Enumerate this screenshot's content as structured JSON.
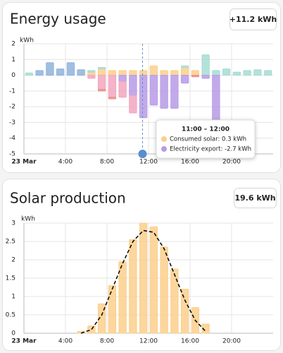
{
  "chart_data": [
    {
      "type": "bar",
      "title": "Energy usage",
      "badge": "+11.2 kWh",
      "y_label": "kWh",
      "categories": [
        "23 Mar",
        null,
        null,
        null,
        "4:00",
        null,
        null,
        null,
        "8:00",
        null,
        null,
        null,
        "12:00",
        null,
        null,
        null,
        "16:00",
        null,
        null,
        null,
        "20:00",
        null,
        null,
        null
      ],
      "ylim": [
        -5,
        2
      ],
      "yticks": [
        -5,
        -4,
        -3,
        -2,
        -1,
        0,
        1,
        2
      ],
      "grid": true,
      "series": [
        {
          "color": "#8fb3dd",
          "values": [
            null,
            0.3,
            0.8,
            0.4,
            0.8,
            0.35,
            null,
            null,
            null,
            null,
            null,
            null,
            null,
            null,
            null,
            null,
            null,
            null,
            null,
            null,
            null,
            null,
            null,
            null
          ]
        },
        {
          "color": "#fbcf8c",
          "values": [
            null,
            null,
            null,
            null,
            null,
            null,
            0.2,
            0.4,
            0.3,
            0.3,
            0.3,
            0.3,
            0.6,
            0.3,
            0.3,
            0.5,
            0.3,
            null,
            null,
            null,
            null,
            null,
            null,
            null
          ]
        },
        {
          "color": "#a7dcd3",
          "values": [
            0.15,
            null,
            null,
            null,
            null,
            null,
            0.1,
            0.1,
            null,
            null,
            null,
            null,
            null,
            null,
            null,
            0.1,
            null,
            1.3,
            0.3,
            0.4,
            0.2,
            0.3,
            0.35,
            0.3
          ]
        },
        {
          "color": "#b79be6",
          "values": [
            null,
            null,
            null,
            null,
            null,
            null,
            null,
            null,
            null,
            -0.4,
            -1.3,
            -2.7,
            -1.9,
            -2.1,
            -2.1,
            -0.5,
            null,
            -0.2,
            -2.9,
            null,
            null,
            null,
            null,
            null
          ]
        },
        {
          "color": "#f2a6bf",
          "values": [
            null,
            null,
            null,
            null,
            null,
            null,
            -0.2,
            -0.9,
            -1.4,
            -1.0,
            -1.1,
            null,
            null,
            null,
            null,
            null,
            null,
            null,
            null,
            null,
            null,
            null,
            null,
            null
          ]
        },
        {
          "color": "#ef8a8a",
          "values": [
            null,
            null,
            null,
            null,
            null,
            null,
            null,
            -0.1,
            -0.1,
            null,
            null,
            null,
            null,
            null,
            null,
            null,
            -0.1,
            null,
            null,
            null,
            null,
            null,
            null,
            null
          ]
        }
      ],
      "tooltip": {
        "title": "11:00 – 12:00",
        "items": [
          "Consumed solar: 0.3 kWh",
          "Electricity export: -2.7 kWh"
        ]
      }
    },
    {
      "type": "bar",
      "title": "Solar production",
      "badge": "19.6 kWh",
      "y_label": "kWh",
      "categories": [
        "23 Mar",
        null,
        null,
        null,
        "4:00",
        null,
        null,
        null,
        "8:00",
        null,
        null,
        null,
        "12:00",
        null,
        null,
        null,
        "16:00",
        null,
        null,
        null,
        "20:00",
        null,
        null,
        null
      ],
      "ylim": [
        0,
        3
      ],
      "yticks": [
        0,
        0.5,
        1,
        1.5,
        2,
        2.5,
        3
      ],
      "grid": true,
      "series": [
        {
          "color": "#fbcf8c",
          "values": [
            null,
            null,
            null,
            null,
            null,
            0.05,
            0.2,
            0.8,
            1.3,
            1.95,
            2.55,
            3.0,
            2.9,
            2.35,
            1.75,
            1.2,
            0.7,
            0.25,
            null,
            null,
            null,
            null,
            null,
            null
          ]
        },
        {
          "type": "line",
          "color": "#000000",
          "values": [
            null,
            null,
            null,
            null,
            null,
            0.0,
            0.1,
            0.5,
            1.2,
            1.9,
            2.5,
            2.8,
            2.75,
            2.3,
            1.6,
            0.9,
            0.35,
            0.05,
            null,
            null,
            null,
            null,
            null,
            null
          ]
        }
      ]
    }
  ]
}
